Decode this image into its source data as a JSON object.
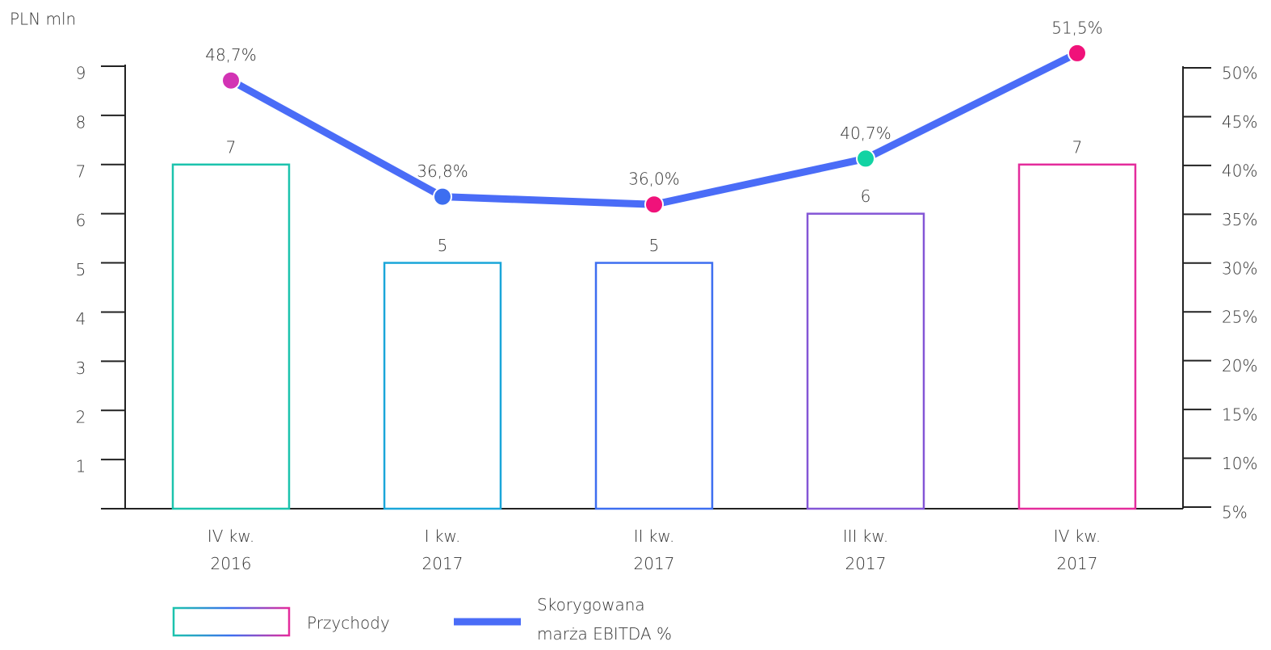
{
  "chart_data": {
    "type": "bar_line",
    "y_label": "PLN mln",
    "categories": [
      "IV kw. 2016",
      "I kw. 2017",
      "II kw. 2017",
      "III kw. 2017",
      "IV kw. 2017"
    ],
    "ylim": [
      0,
      9
    ],
    "yticks": [
      1,
      2,
      3,
      4,
      5,
      6,
      7,
      8,
      9
    ],
    "y2lim": [
      5,
      50
    ],
    "y2ticks": [
      {
        "value": 5,
        "label": "5%"
      },
      {
        "value": 10,
        "label": "10%"
      },
      {
        "value": 15,
        "label": "15%"
      },
      {
        "value": 20,
        "label": "20%"
      },
      {
        "value": 25,
        "label": "25%"
      },
      {
        "value": 30,
        "label": "30%"
      },
      {
        "value": 35,
        "label": "35%"
      },
      {
        "value": 40,
        "label": "40%"
      },
      {
        "value": 45,
        "label": "45%"
      },
      {
        "value": 50,
        "label": "50%"
      }
    ],
    "series": [
      {
        "name": "Przychody",
        "type": "bar",
        "values": [
          7,
          5,
          5,
          6,
          7
        ],
        "colors": [
          "#1cc3ad",
          "#1aa6d9",
          "#3d6ef0",
          "#8456d6",
          "#e42c9c"
        ]
      },
      {
        "name": "Skorygowana marża EBITDA %",
        "type": "line",
        "axis": "y2",
        "color": "#4a6cf7",
        "values": [
          48.7,
          36.8,
          36.0,
          40.7,
          51.5
        ],
        "value_labels": [
          "48,7%",
          "36,8%",
          "36,0%",
          "40,7%",
          "51,5%"
        ],
        "point_colors": [
          "#d233b4",
          "#3d6ef0",
          "#f0127a",
          "#12d3a3",
          "#f0127a"
        ]
      }
    ]
  }
}
